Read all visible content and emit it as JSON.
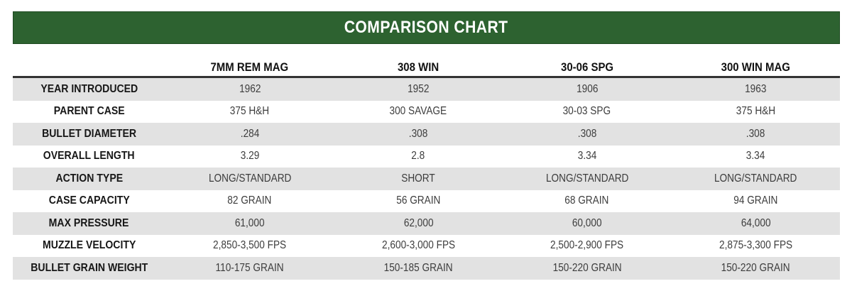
{
  "title": "COMPARISON CHART",
  "colors": {
    "banner_green": "#2d6230",
    "alt_row_gray": "#e2e2e2",
    "rule_dark": "#333333"
  },
  "chart_data": {
    "type": "table",
    "title": "COMPARISON CHART",
    "columns": [
      "7MM REM MAG",
      "308 WIN",
      "30-06 SPG",
      "300 WIN MAG"
    ],
    "rows": [
      {
        "label": "YEAR INTRODUCED",
        "values": [
          "1962",
          "1952",
          "1906",
          "1963"
        ]
      },
      {
        "label": "PARENT CASE",
        "values": [
          "375 H&H",
          "300 SAVAGE",
          "30-03 SPG",
          "375 H&H"
        ]
      },
      {
        "label": "BULLET DIAMETER",
        "values": [
          ".284",
          ".308",
          ".308",
          ".308"
        ]
      },
      {
        "label": "OVERALL LENGTH",
        "values": [
          "3.29",
          "2.8",
          "3.34",
          "3.34"
        ]
      },
      {
        "label": "ACTION TYPE",
        "values": [
          "LONG/STANDARD",
          "SHORT",
          "LONG/STANDARD",
          "LONG/STANDARD"
        ]
      },
      {
        "label": "CASE CAPACITY",
        "values": [
          "82 GRAIN",
          "56 GRAIN",
          "68 GRAIN",
          "94 GRAIN"
        ]
      },
      {
        "label": "MAX PRESSURE",
        "values": [
          "61,000",
          "62,000",
          "60,000",
          "64,000"
        ]
      },
      {
        "label": "MUZZLE VELOCITY",
        "values": [
          "2,850-3,500 FPS",
          "2,600-3,000 FPS",
          "2,500-2,900 FPS",
          "2,875-3,300 FPS"
        ]
      },
      {
        "label": "BULLET GRAIN WEIGHT",
        "values": [
          "110-175 GRAIN",
          "150-185 GRAIN",
          "150-220 GRAIN",
          "150-220 GRAIN"
        ]
      }
    ],
    "layout": {
      "alternating_row_shading": true,
      "first_shaded_row_index": 0,
      "header_rule": true
    }
  }
}
